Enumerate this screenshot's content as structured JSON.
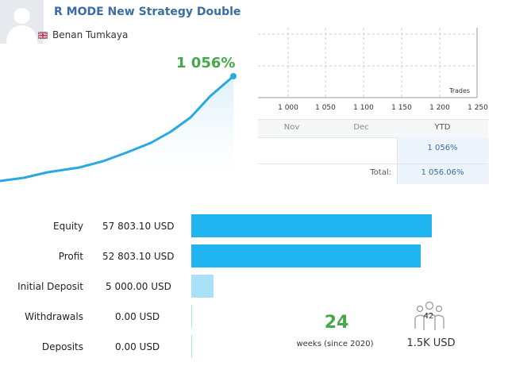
{
  "header": {
    "title": "R MODE New Strategy Double",
    "author": "Benan Tumkaya",
    "author_flag": "uk-flag-icon"
  },
  "growth": {
    "value_label": "1 056%",
    "color": "#45a849",
    "line_color": "#2aa8e0"
  },
  "trades_chart": {
    "x_ticks": [
      "1 000",
      "1 050",
      "1 100",
      "1 150",
      "1 200",
      "1 250"
    ],
    "y_label": "Trades"
  },
  "year_table": {
    "columns": [
      "Nov",
      "Dec",
      "YTD"
    ],
    "row_ytd": "1 056%",
    "total_label": "Total:",
    "total_value": "1 056.06%"
  },
  "metrics": [
    {
      "label": "Equity",
      "value": "57 803.10 USD",
      "fraction": 0.82,
      "color": "#20b5f0"
    },
    {
      "label": "Profit",
      "value": "52 803.10 USD",
      "fraction": 0.78,
      "color": "#20b5f0"
    },
    {
      "label": "Initial Deposit",
      "value": "5 000.00 USD",
      "fraction": 0.075,
      "color": "#a9e1f8"
    },
    {
      "label": "Withdrawals",
      "value": "0.00 USD",
      "fraction": 0.0,
      "color": "#a9e1f8"
    },
    {
      "label": "Deposits",
      "value": "0.00 USD",
      "fraction": 0.0,
      "color": "#a9e1f8"
    }
  ],
  "weeks": {
    "number": "24",
    "label": "weeks (since 2020)"
  },
  "subscribers": {
    "count": "42",
    "amount": "1.5K USD",
    "icon": "subscribers-icon"
  }
}
